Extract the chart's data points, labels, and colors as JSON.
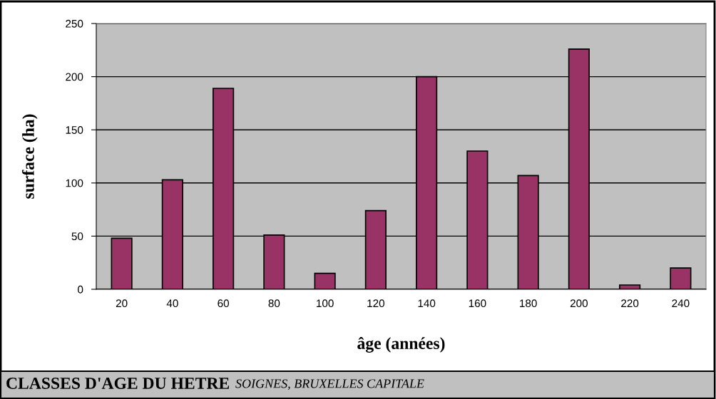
{
  "chart_data": {
    "type": "bar",
    "title": "CLASSES D'AGE DU HETRE",
    "subtitle": "SOIGNES, BRUXELLES CAPITALE",
    "xlabel": "âge (années)",
    "ylabel": "surface (ha)",
    "categories": [
      "20",
      "40",
      "60",
      "80",
      "100",
      "120",
      "140",
      "160",
      "180",
      "200",
      "220",
      "240"
    ],
    "values": [
      48,
      103,
      189,
      51,
      15,
      74,
      200,
      130,
      107,
      226,
      4,
      20
    ],
    "color": "#993366",
    "ylim": [
      0,
      250
    ],
    "yticks": [
      0,
      50,
      100,
      150,
      200,
      250
    ],
    "grid": "y",
    "legend": false
  }
}
